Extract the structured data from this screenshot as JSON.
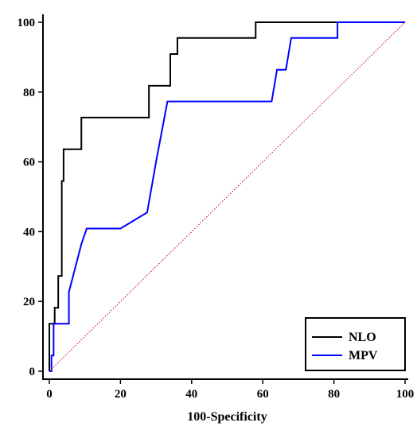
{
  "chart_data": {
    "type": "line",
    "title": "",
    "xlabel": "100-Specificity",
    "ylabel": "",
    "xlim": [
      0,
      100
    ],
    "ylim": [
      0,
      100
    ],
    "x_ticks": [
      "0",
      "20",
      "40",
      "60",
      "80",
      "100"
    ],
    "y_ticks": [
      "0",
      "20",
      "40",
      "60",
      "80",
      "100"
    ],
    "grid": false,
    "legend_position": "bottom-right",
    "series": [
      {
        "name": "NLO",
        "color": "#000000",
        "style": "step",
        "x": [
          0,
          0,
          1.5,
          1.5,
          2.5,
          2.5,
          3.5,
          3.5,
          4,
          4,
          9,
          9,
          28,
          28,
          34,
          34,
          36,
          36,
          58,
          58,
          100
        ],
        "y": [
          0,
          13.6,
          13.6,
          18.2,
          18.2,
          27.3,
          27.3,
          54.5,
          54.5,
          63.6,
          63.6,
          72.7,
          72.7,
          81.8,
          81.8,
          90.9,
          90.9,
          95.5,
          95.5,
          100,
          100
        ]
      },
      {
        "name": "MPV",
        "color": "#0000ff",
        "style": "step",
        "x": [
          0,
          0.6,
          0.6,
          1.2,
          1.2,
          5.5,
          5.5,
          9,
          9,
          10.5,
          10.5,
          20,
          27.5,
          30,
          33.2,
          62.5,
          64,
          66.5,
          68,
          81,
          81,
          100
        ],
        "y": [
          0,
          0,
          4.5,
          4.5,
          13.6,
          13.6,
          22.7,
          36.4,
          36.4,
          40.9,
          40.9,
          40.9,
          45.5,
          60,
          77.3,
          77.3,
          86.4,
          86.4,
          95.5,
          95.5,
          100,
          100
        ]
      },
      {
        "name": "",
        "color": "#cc0000",
        "style": "dotted",
        "x": [
          0,
          100
        ],
        "y": [
          0,
          100
        ]
      }
    ],
    "legend": [
      {
        "label": "NLO",
        "color": "#000000"
      },
      {
        "label": "MPV",
        "color": "#0000ff"
      }
    ]
  }
}
